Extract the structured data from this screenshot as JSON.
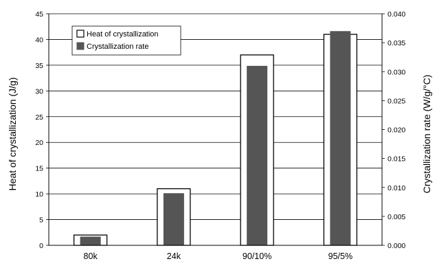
{
  "chart_data": {
    "type": "bar",
    "categories": [
      "80k",
      "24k",
      "90/10%",
      "95/5%"
    ],
    "series": [
      {
        "name": "Heat of crystallization",
        "axis": "left",
        "values": [
          2,
          11,
          37,
          41
        ]
      },
      {
        "name": "Crystallization rate",
        "axis": "right",
        "values": [
          0.0015,
          0.009,
          0.031,
          0.037
        ]
      }
    ],
    "ylabel": "Heat of crystallization (J/g)",
    "y2label": "Crystallization rate (W/g/°C)",
    "ylim": [
      0,
      45
    ],
    "y2lim": [
      0,
      0.04
    ],
    "yticks": [
      "0",
      "5",
      "10",
      "15",
      "20",
      "25",
      "30",
      "35",
      "40",
      "45"
    ],
    "y2ticks": [
      "0.000",
      "0.005",
      "0.010",
      "0.015",
      "0.020",
      "0.025",
      "0.030",
      "0.035",
      "0.040"
    ],
    "grid": true,
    "legend_position": "top-left",
    "colors": {
      "heat_fill": "#ffffff",
      "rate_fill": "#555555",
      "stroke": "#000000"
    }
  }
}
